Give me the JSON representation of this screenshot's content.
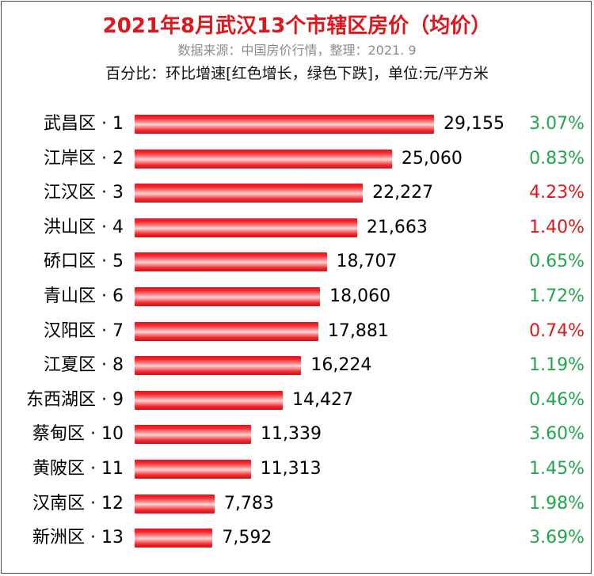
{
  "title": "2021年8月武汉13个市辖区房价（均价）",
  "source": "数据来源：中国房价行情，整理：2021. 9",
  "note": "百分比：环比增速[红色增长，绿色下跌]，单位:元/平方米",
  "colors": {
    "up": "#e0161b",
    "down": "#1ea84a",
    "bar": "#f02a30",
    "title": "#e0161b"
  },
  "chart_data": {
    "type": "bar",
    "orientation": "horizontal",
    "categories": [
      "武昌区 · 1",
      "江岸区 · 2",
      "江汉区 · 3",
      "洪山区 · 4",
      "硚口区 · 5",
      "青山区 · 6",
      "汉阳区 · 7",
      "江夏区 · 8",
      "东西湖区 · 9",
      "蔡甸区 · 10",
      "黄陂区 · 11",
      "汉南区 · 12",
      "新洲区 · 13"
    ],
    "values": [
      29155,
      25060,
      22227,
      21663,
      18707,
      18060,
      17881,
      16224,
      14427,
      11339,
      11313,
      7783,
      7592
    ],
    "value_labels": [
      "29,155",
      "25,060",
      "22,227",
      "21,663",
      "18,707",
      "18,060",
      "17,881",
      "16,224",
      "14,427",
      "11,339",
      "11,313",
      "7,783",
      "7,592"
    ],
    "change_pct": [
      "3.07%",
      "0.83%",
      "4.23%",
      "1.40%",
      "0.65%",
      "1.72%",
      "0.74%",
      "1.19%",
      "0.46%",
      "3.60%",
      "1.45%",
      "1.98%",
      "3.69%"
    ],
    "change_direction": [
      "down",
      "down",
      "up",
      "up",
      "down",
      "down",
      "up",
      "down",
      "down",
      "down",
      "down",
      "down",
      "down"
    ],
    "grid": false,
    "legend": "none"
  }
}
